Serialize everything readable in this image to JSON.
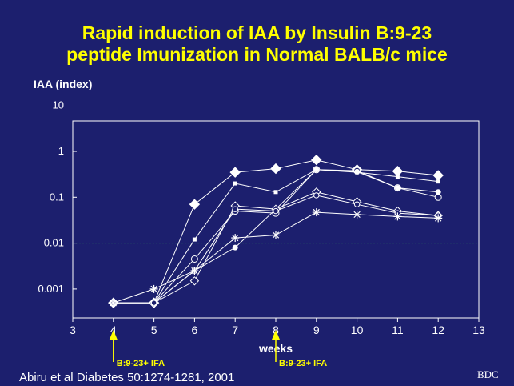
{
  "title": {
    "line1": "Rapid induction of IAA by Insulin B:9-23",
    "line2": "peptide Imunization in Normal BALB/c mice"
  },
  "citation": "Abiru et al Diabetes 50:1274-1281, 2001",
  "logo_text": "BDC",
  "colors": {
    "background": "#1c1f6e",
    "title": "#ffff00",
    "text": "#ffffff",
    "threshold": "#2e8b57",
    "arrow": "#ffff00"
  },
  "chart_data": {
    "type": "line",
    "title": "Rapid induction of IAA by Insulin B:9-23 peptide Imunization in Normal BALB/c mice",
    "xlabel": "weeks",
    "ylabel": "IAA (index)",
    "xlim": [
      3,
      13
    ],
    "ylim": [
      0.0003,
      10
    ],
    "yscale": "log",
    "x_ticks": [
      "3",
      "4",
      "5",
      "6",
      "7",
      "8",
      "9",
      "10",
      "11",
      "12",
      "13"
    ],
    "y_ticks": [
      {
        "value": 10,
        "label": "10"
      },
      {
        "value": 1,
        "label": "1"
      },
      {
        "value": 0.1,
        "label": "0.1"
      },
      {
        "value": 0.01,
        "label": "0.01"
      },
      {
        "value": 0.001,
        "label": "0.001"
      }
    ],
    "threshold": 0.01,
    "grid": false,
    "legend": "none",
    "series": [
      {
        "marker": "filled-diamond",
        "x": [
          4,
          5,
          6,
          7,
          8,
          9,
          10,
          11,
          12
        ],
        "values": [
          0.0005,
          0.0005,
          0.07,
          0.35,
          0.42,
          0.65,
          0.4,
          0.37,
          0.3
        ]
      },
      {
        "marker": "filled-square",
        "x": [
          4,
          5,
          6,
          7,
          8,
          9,
          10,
          11,
          12
        ],
        "values": [
          0.0005,
          0.0005,
          0.012,
          0.2,
          0.13,
          0.4,
          0.35,
          0.28,
          0.22
        ]
      },
      {
        "marker": "open-circle",
        "x": [
          4,
          5,
          6,
          7,
          8,
          9,
          10,
          11,
          12
        ],
        "values": [
          0.0005,
          0.0005,
          0.0045,
          0.05,
          0.045,
          0.4,
          0.38,
          0.16,
          0.1
        ]
      },
      {
        "marker": "filled-circle",
        "x": [
          4,
          5,
          6,
          7,
          8,
          9,
          10,
          11,
          12
        ],
        "values": [
          0.0005,
          0.0005,
          0.0025,
          0.008,
          0.055,
          0.4,
          0.36,
          0.16,
          0.13
        ]
      },
      {
        "marker": "open-diamond",
        "x": [
          4,
          5,
          6,
          7,
          8,
          9,
          10,
          11,
          12
        ],
        "values": [
          0.0005,
          0.0005,
          0.0015,
          0.065,
          0.055,
          0.13,
          0.08,
          0.05,
          0.04
        ]
      },
      {
        "marker": "open-circle-small",
        "x": [
          4,
          5,
          6,
          7,
          8,
          9,
          10,
          11,
          12
        ],
        "values": [
          0.0005,
          0.0005,
          0.0025,
          0.055,
          0.05,
          0.11,
          0.07,
          0.045,
          0.04
        ]
      },
      {
        "marker": "asterisk",
        "x": [
          4,
          5,
          6,
          7,
          8,
          9,
          10,
          11,
          12
        ],
        "values": [
          0.0005,
          0.001,
          0.0025,
          0.013,
          0.015,
          0.047,
          0.042,
          0.038,
          0.035
        ]
      }
    ],
    "annotations": [
      {
        "x": 4,
        "text": "B:9-23+ IFA"
      },
      {
        "x": 8,
        "text": "B:9-23+ IFA"
      }
    ]
  }
}
